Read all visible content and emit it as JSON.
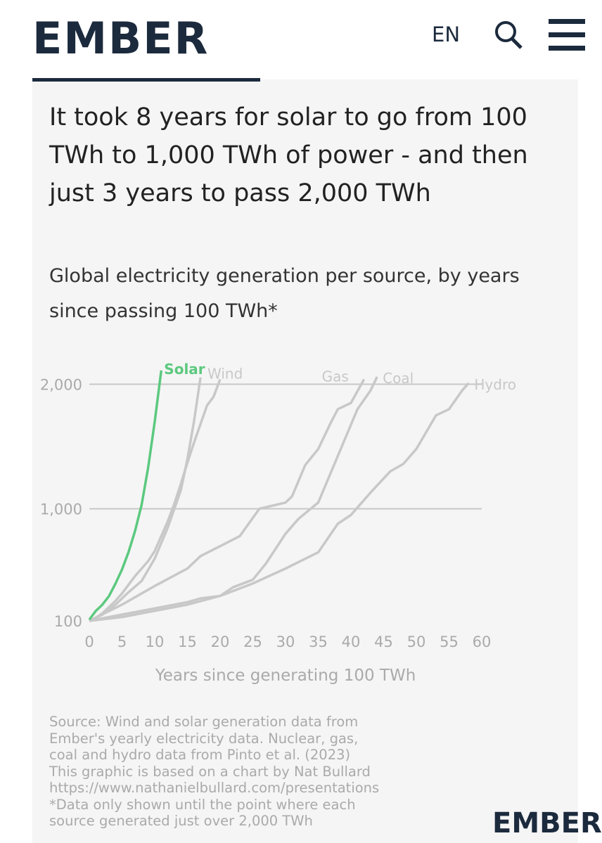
{
  "header": {
    "logo": "EMBER",
    "language": "EN"
  },
  "chart_data": {
    "type": "line",
    "title": "It took 8 years for solar to go from 100 TWh to 1,000 TWh of power - and then just 3 years to pass 2,000 TWh",
    "subtitle": "Global electricity generation per source, by years since passing 100 TWh*",
    "x_label": "Years since generating 100 TWh",
    "xlim": [
      0,
      60
    ],
    "xticks": [
      0,
      5,
      10,
      15,
      20,
      25,
      30,
      35,
      40,
      45,
      50,
      55,
      60
    ],
    "ylim": [
      100,
      2150
    ],
    "yticks": [
      100,
      {
        "value": 1000,
        "label": "1,000"
      },
      {
        "value": 2000,
        "label": "2,000"
      }
    ],
    "grid": true,
    "series": [
      {
        "name": "Solar",
        "color": "#5cc97f",
        "x": [
          0,
          1,
          2,
          3,
          4,
          5,
          6,
          7,
          8,
          9,
          10,
          11
        ],
        "values": [
          110,
          180,
          230,
          298,
          399,
          512,
          653,
          823,
          1032,
          1332,
          1699,
          2111
        ]
      },
      {
        "name": "Wind",
        "color": "#c8c8c8",
        "x": [
          0,
          1,
          2,
          3,
          4,
          5,
          6,
          7,
          8,
          9,
          10,
          11,
          12,
          13,
          14,
          15,
          16,
          17,
          18,
          19,
          20
        ],
        "values": [
          100,
          125,
          160,
          210,
          260,
          320,
          390,
          460,
          520,
          580,
          660,
          780,
          900,
          1040,
          1200,
          1370,
          1530,
          1680,
          1830,
          1900,
          2040
        ]
      },
      {
        "color": "#c8c8c8",
        "x": [
          0,
          2,
          4,
          6,
          8,
          10,
          12,
          14,
          15,
          16,
          17
        ],
        "values": [
          100,
          150,
          230,
          330,
          420,
          600,
          850,
          1150,
          1400,
          1700,
          2055
        ]
      },
      {
        "name": "Gas",
        "color": "#c8c8c8",
        "x": [
          0,
          5,
          10,
          15,
          17,
          20,
          23,
          26,
          30,
          31,
          33,
          35,
          37,
          38,
          40,
          42
        ],
        "values": [
          100,
          230,
          380,
          520,
          620,
          700,
          780,
          1000,
          1050,
          1100,
          1350,
          1480,
          1700,
          1800,
          1850,
          2040
        ]
      },
      {
        "name": "Coal",
        "color": "#c8c8c8",
        "x": [
          0,
          5,
          10,
          15,
          17,
          20,
          22,
          25,
          27,
          30,
          32,
          35,
          37,
          39,
          41,
          43,
          44
        ],
        "values": [
          100,
          150,
          200,
          250,
          280,
          300,
          370,
          430,
          560,
          800,
          920,
          1050,
          1300,
          1550,
          1800,
          1950,
          2060
        ]
      },
      {
        "name": "Hydro",
        "color": "#c8c8c8",
        "x": [
          0,
          5,
          10,
          15,
          20,
          25,
          30,
          35,
          38,
          40,
          43,
          46,
          48,
          50,
          53,
          55,
          57,
          58
        ],
        "values": [
          100,
          130,
          180,
          230,
          300,
          400,
          520,
          650,
          880,
          950,
          1130,
          1300,
          1360,
          1480,
          1750,
          1800,
          1950,
          2010
        ]
      }
    ],
    "source": [
      "Source: Wind and solar generation data from",
      "Ember's yearly electricity data. Nuclear, gas,",
      "coal and hydro data from Pinto et al. (2023)",
      "This graphic is based on a chart by Nat Bullard",
      "https://www.nathanielbullard.com/presentations",
      "*Data only shown until the point where each",
      "source generated just over 2,000 TWh"
    ]
  },
  "footer": {
    "logo": "EMBER"
  }
}
